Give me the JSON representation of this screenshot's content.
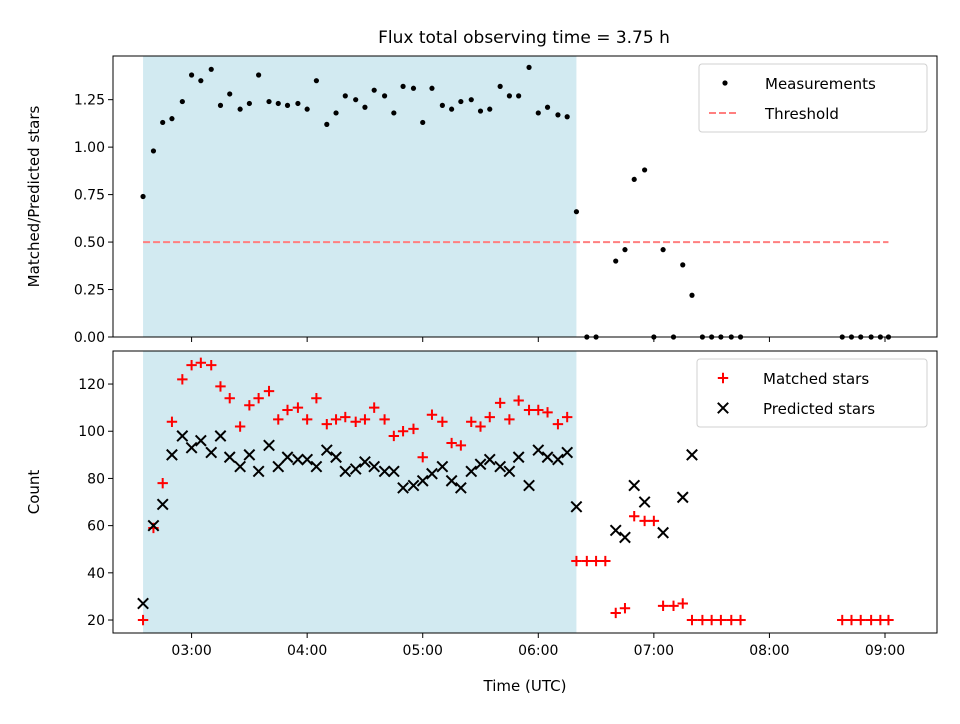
{
  "figure": {
    "title": "Flux total observing time = 3.75 h",
    "colors": {
      "highlight": "#add8e6",
      "threshold": "#ff7f7f",
      "matched": "#ff0000",
      "predicted": "#000000",
      "measurements": "#000000"
    }
  },
  "chart_data": [
    {
      "type": "scatter",
      "title": "Flux total observing time = 3.75 h",
      "xlabel": "",
      "ylabel": "Matched/Predicted stars",
      "x_unit": "hours UTC",
      "xlim": [
        2.32,
        9.45
      ],
      "ylim": [
        0.0,
        1.48
      ],
      "yticks": [
        0.0,
        0.25,
        0.5,
        0.75,
        1.0,
        1.25
      ],
      "ytick_labels": [
        "0.00",
        "0.25",
        "0.50",
        "0.75",
        "1.00",
        "1.25"
      ],
      "xticks": [
        3,
        4,
        5,
        6,
        7,
        8,
        9
      ],
      "xtick_labels": [
        "03:00",
        "04:00",
        "05:00",
        "06:00",
        "07:00",
        "08:00",
        "09:00"
      ],
      "show_xtick_labels": false,
      "highlight_span": [
        2.58,
        6.33
      ],
      "legend": {
        "position": "upper right",
        "entries": [
          "Measurements",
          "Threshold"
        ]
      },
      "threshold": {
        "name": "Threshold",
        "y": 0.5,
        "x_range": [
          2.58,
          9.03
        ]
      },
      "series": [
        {
          "name": "Measurements",
          "marker": "dot",
          "x": [
            2.58,
            2.67,
            2.75,
            2.83,
            2.92,
            3.0,
            3.08,
            3.17,
            3.25,
            3.33,
            3.42,
            3.5,
            3.58,
            3.67,
            3.75,
            3.83,
            3.92,
            4.0,
            4.08,
            4.17,
            4.25,
            4.33,
            4.42,
            4.5,
            4.58,
            4.67,
            4.75,
            4.83,
            4.92,
            5.0,
            5.08,
            5.17,
            5.25,
            5.33,
            5.42,
            5.5,
            5.58,
            5.67,
            5.75,
            5.83,
            5.92,
            6.0,
            6.08,
            6.17,
            6.25,
            6.33,
            6.42,
            6.5,
            6.67,
            6.75,
            6.83,
            6.92,
            7.0,
            7.08,
            7.17,
            7.25,
            7.33,
            7.42,
            7.5,
            7.58,
            7.67,
            7.75,
            8.63,
            8.71,
            8.79,
            8.88,
            8.96,
            9.03
          ],
          "y": [
            0.74,
            0.98,
            1.13,
            1.15,
            1.24,
            1.38,
            1.35,
            1.41,
            1.22,
            1.28,
            1.2,
            1.23,
            1.38,
            1.24,
            1.23,
            1.22,
            1.23,
            1.2,
            1.35,
            1.12,
            1.18,
            1.27,
            1.25,
            1.21,
            1.3,
            1.27,
            1.18,
            1.32,
            1.31,
            1.13,
            1.31,
            1.22,
            1.2,
            1.24,
            1.25,
            1.19,
            1.2,
            1.32,
            1.27,
            1.27,
            1.42,
            1.18,
            1.21,
            1.17,
            1.16,
            0.66,
            0.0,
            0.0,
            0.4,
            0.46,
            0.83,
            0.88,
            0.0,
            0.46,
            0.0,
            0.38,
            0.22,
            0.0,
            0.0,
            0.0,
            0.0,
            0.0,
            0.0,
            0.0,
            0.0,
            0.0,
            0.0,
            0.0
          ]
        }
      ]
    },
    {
      "type": "scatter",
      "title": "",
      "xlabel": "Time (UTC)",
      "ylabel": "Count",
      "x_unit": "hours UTC",
      "xlim": [
        2.32,
        9.45
      ],
      "ylim": [
        14.5,
        134
      ],
      "yticks": [
        20,
        40,
        60,
        80,
        100,
        120
      ],
      "ytick_labels": [
        "20",
        "40",
        "60",
        "80",
        "100",
        "120"
      ],
      "xticks": [
        3,
        4,
        5,
        6,
        7,
        8,
        9
      ],
      "xtick_labels": [
        "03:00",
        "04:00",
        "05:00",
        "06:00",
        "07:00",
        "08:00",
        "09:00"
      ],
      "show_xtick_labels": true,
      "highlight_span": [
        2.58,
        6.33
      ],
      "legend": {
        "position": "upper right",
        "entries": [
          "Matched stars",
          "Predicted stars"
        ]
      },
      "series": [
        {
          "name": "Matched stars",
          "marker": "plus",
          "x": [
            2.58,
            2.67,
            2.75,
            2.83,
            2.92,
            3.0,
            3.08,
            3.17,
            3.25,
            3.33,
            3.42,
            3.5,
            3.58,
            3.67,
            3.75,
            3.83,
            3.92,
            4.0,
            4.08,
            4.17,
            4.25,
            4.33,
            4.42,
            4.5,
            4.58,
            4.67,
            4.75,
            4.83,
            4.92,
            5.0,
            5.08,
            5.17,
            5.25,
            5.33,
            5.42,
            5.5,
            5.58,
            5.67,
            5.75,
            5.83,
            5.92,
            6.0,
            6.08,
            6.17,
            6.25,
            6.33,
            6.42,
            6.5,
            6.58,
            6.67,
            6.75,
            6.83,
            6.92,
            7.0,
            7.08,
            7.17,
            7.25,
            7.33,
            7.42,
            7.5,
            7.58,
            7.67,
            7.75,
            8.63,
            8.71,
            8.79,
            8.88,
            8.96,
            9.03
          ],
          "y": [
            20,
            59,
            78,
            104,
            122,
            128,
            129,
            128,
            119,
            114,
            102,
            111,
            114,
            117,
            105,
            109,
            110,
            105,
            114,
            103,
            105,
            106,
            104,
            105,
            110,
            105,
            98,
            100,
            101,
            89,
            107,
            104,
            95,
            94,
            104,
            102,
            106,
            112,
            105,
            113,
            109,
            109,
            108,
            103,
            106,
            45,
            45,
            45,
            45,
            23,
            25,
            64,
            62,
            62,
            26,
            26,
            27,
            20,
            20,
            20,
            20,
            20,
            20,
            20,
            20,
            20,
            20,
            20,
            20
          ]
        },
        {
          "name": "Predicted stars",
          "marker": "x",
          "x": [
            2.58,
            2.67,
            2.75,
            2.83,
            2.92,
            3.0,
            3.08,
            3.17,
            3.25,
            3.33,
            3.42,
            3.5,
            3.58,
            3.67,
            3.75,
            3.83,
            3.92,
            4.0,
            4.08,
            4.17,
            4.25,
            4.33,
            4.42,
            4.5,
            4.58,
            4.67,
            4.75,
            4.83,
            4.92,
            5.0,
            5.08,
            5.17,
            5.25,
            5.33,
            5.42,
            5.5,
            5.58,
            5.67,
            5.75,
            5.83,
            5.92,
            6.0,
            6.08,
            6.17,
            6.25,
            6.33,
            6.67,
            6.75,
            6.83,
            6.92,
            7.08,
            7.25,
            7.33
          ],
          "y": [
            27,
            60,
            69,
            90,
            98,
            93,
            96,
            91,
            98,
            89,
            85,
            90,
            83,
            94,
            85,
            89,
            88,
            88,
            85,
            92,
            89,
            83,
            84,
            87,
            85,
            83,
            83,
            76,
            77,
            79,
            82,
            85,
            79,
            76,
            83,
            86,
            88,
            85,
            83,
            89,
            77,
            92,
            89,
            88,
            91,
            68,
            58,
            55,
            77,
            70,
            57,
            72,
            90
          ]
        }
      ]
    }
  ]
}
